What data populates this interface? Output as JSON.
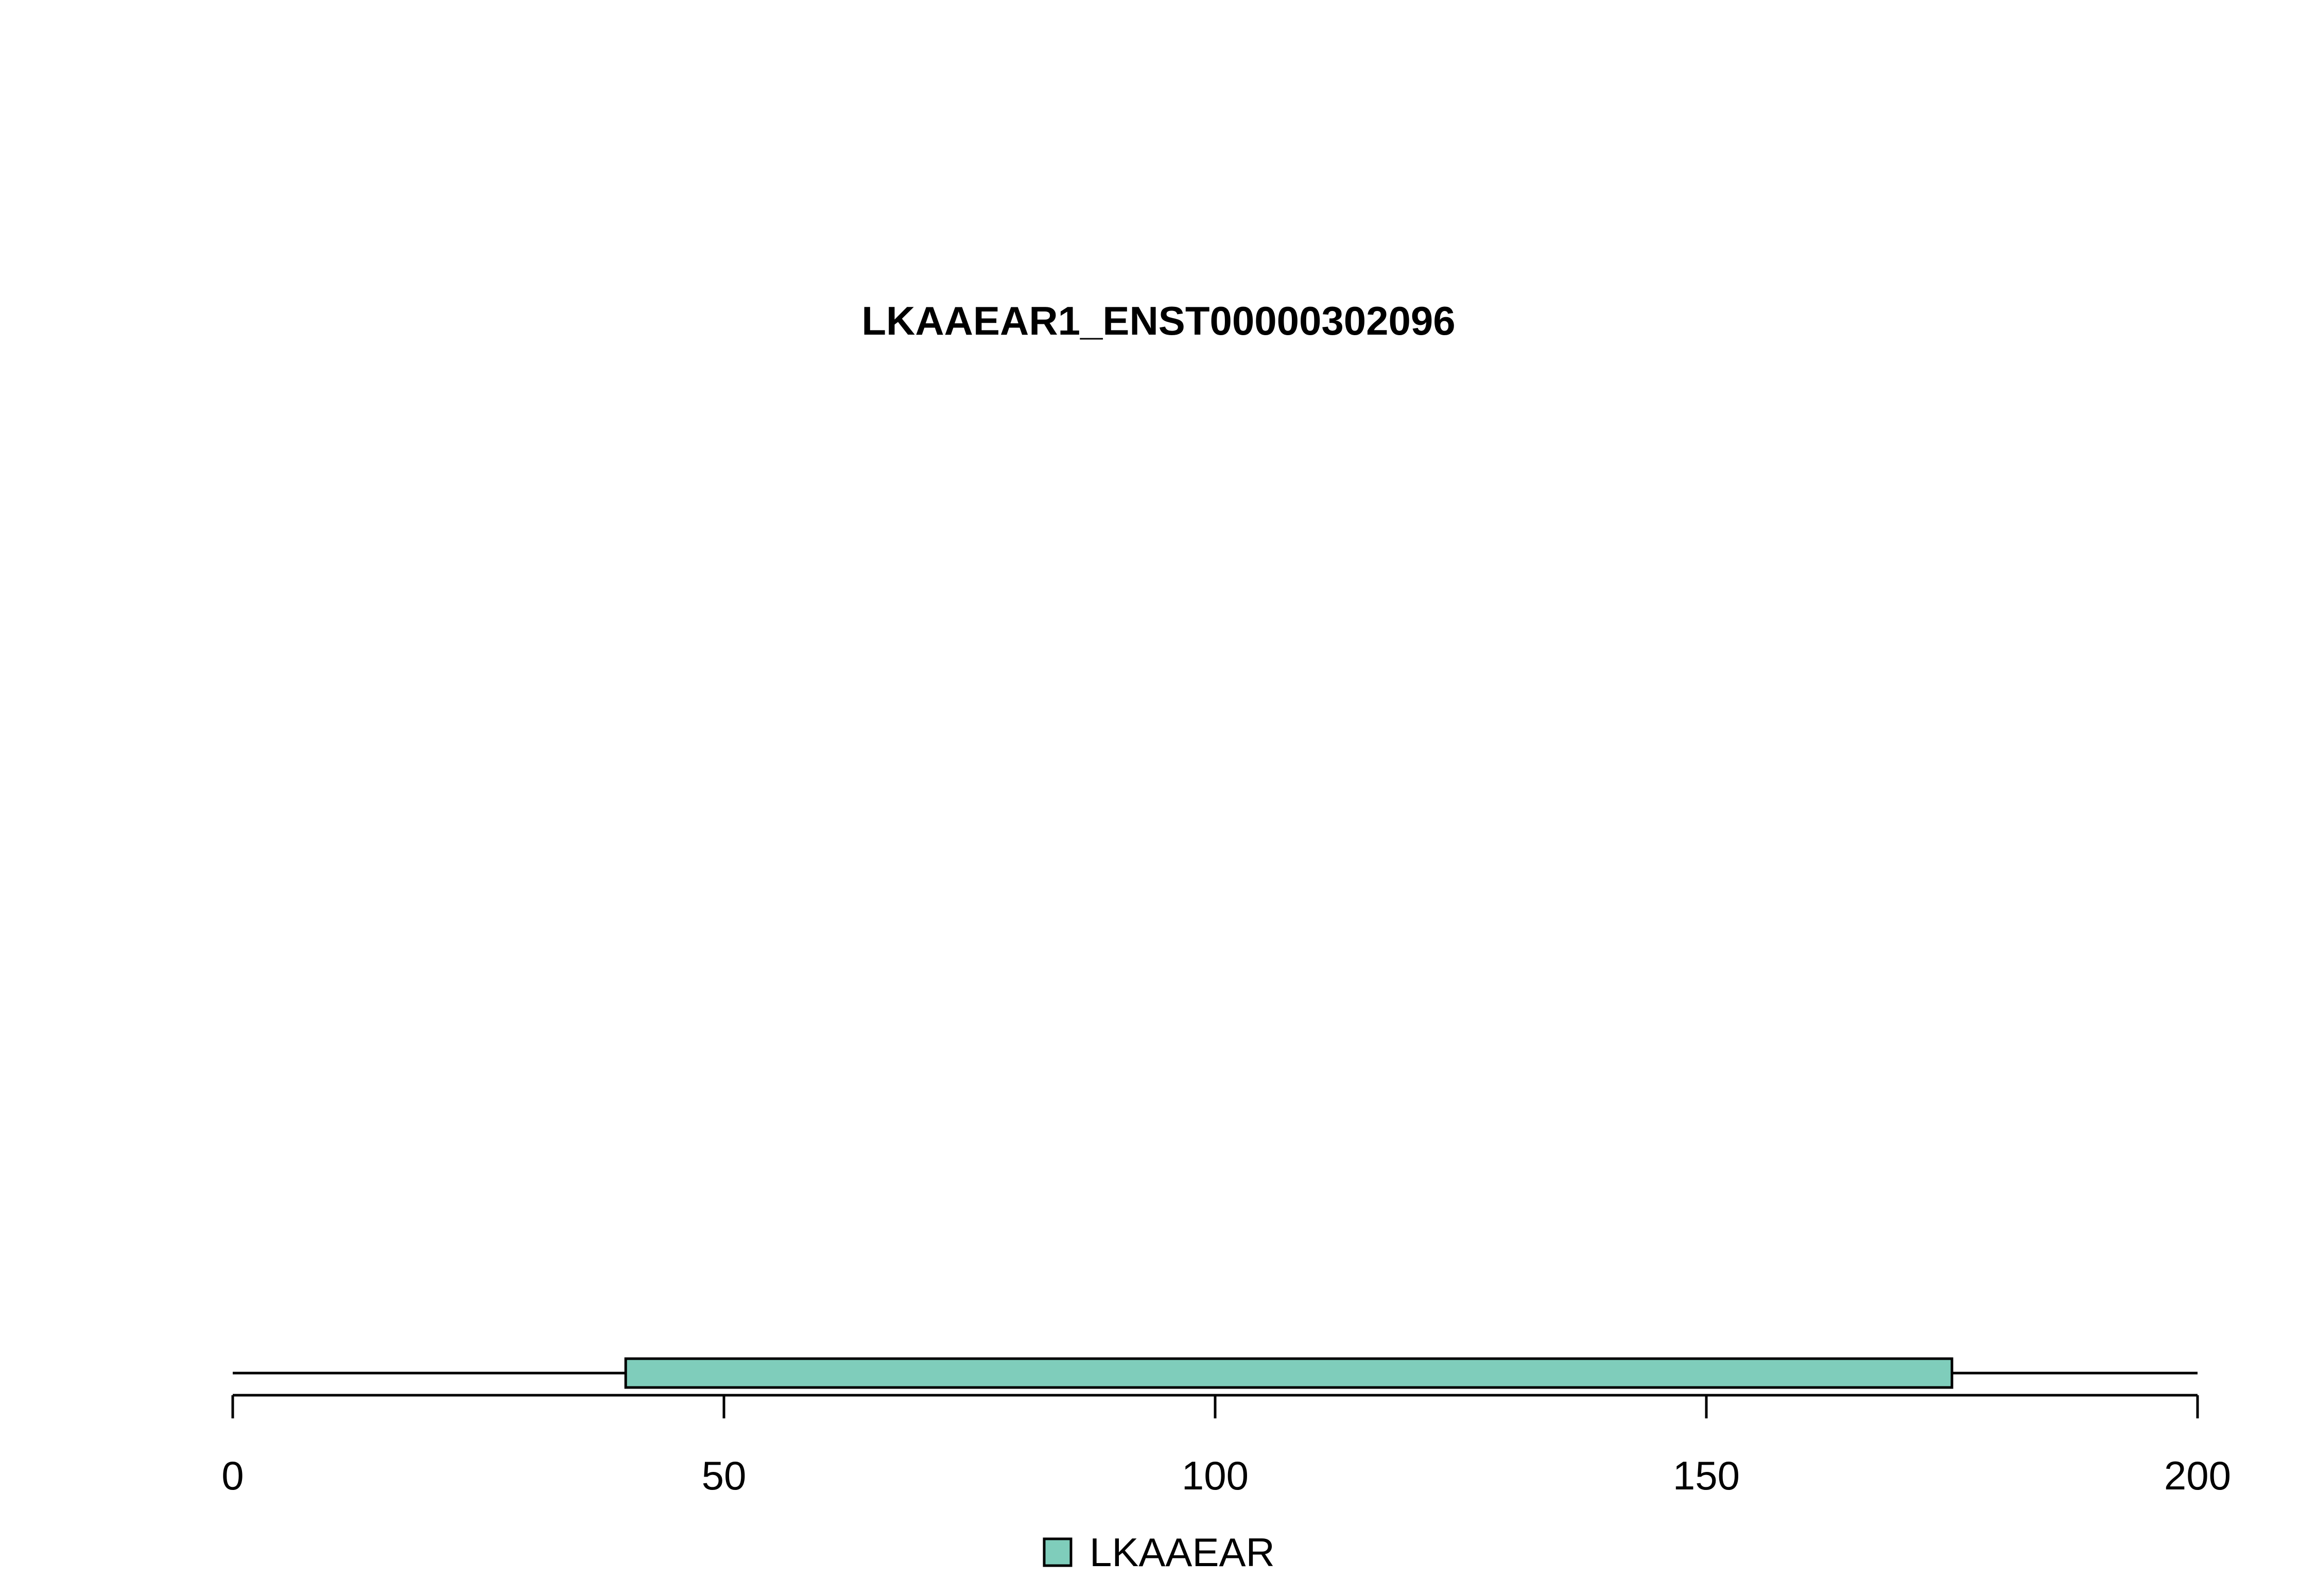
{
  "chart_data": {
    "type": "bar",
    "title": "LKAAEAR1_ENST00000302096",
    "xlim": [
      0,
      200
    ],
    "x_ticks": [
      "0",
      "50",
      "100",
      "150",
      "200"
    ],
    "x_tick_values": [
      0,
      50,
      100,
      150,
      200
    ],
    "protein_length": 200,
    "domains": [
      {
        "name": "LKAAEAR",
        "start": 40,
        "end": 175,
        "color": "#7fcdbb"
      }
    ],
    "legend": [
      {
        "label": "LKAAEAR",
        "color": "#7fcdbb"
      }
    ]
  }
}
